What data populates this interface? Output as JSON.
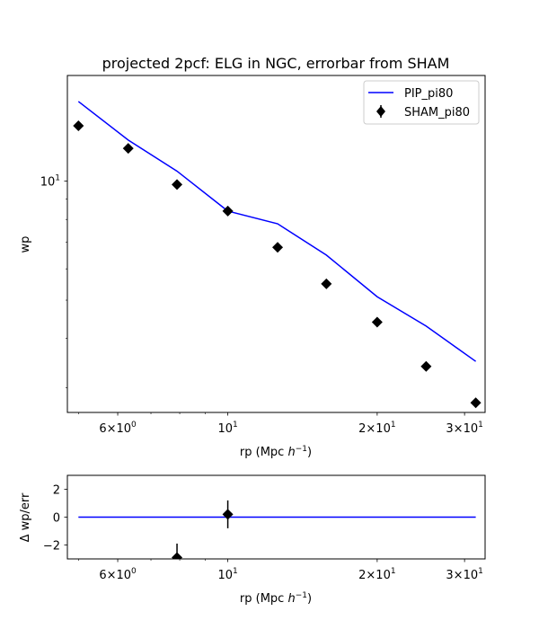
{
  "chart_data": [
    {
      "type": "line",
      "title": "projected 2pcf: ELG in NGC, errorbar from SHAM",
      "xlabel_main": "rp (Mpc ",
      "xlabel_sym": "h",
      "xlabel_exp": "−1",
      "xlabel_close": ")",
      "ylabel": "wp",
      "xscale": "log",
      "yscale": "log",
      "xlim": [
        4.75,
        33.0
      ],
      "ylim": [
        2.6,
        18.5
      ],
      "xticks": [
        {
          "value": 6,
          "mant": "6×10",
          "exp": "0"
        },
        {
          "value": 10,
          "mant": "10",
          "exp": "1"
        },
        {
          "value": 20,
          "mant": "2×10",
          "exp": "1"
        },
        {
          "value": 30,
          "mant": "3×10",
          "exp": "1"
        }
      ],
      "yticks": [
        {
          "value": 10,
          "mant": "10",
          "exp": "1"
        }
      ],
      "legend_position": "top-right",
      "series": [
        {
          "name": "PIP_pi80",
          "kind": "line",
          "color": "#0000ff",
          "x": [
            5.0,
            6.3,
            7.9,
            10.0,
            12.6,
            15.8,
            20.0,
            25.1,
            31.6
          ],
          "y": [
            15.9,
            12.7,
            10.6,
            8.4,
            7.8,
            6.5,
            5.1,
            4.3,
            3.5
          ]
        },
        {
          "name": "SHAM_pi80",
          "kind": "errorbar",
          "color": "#000000",
          "marker": "diamond",
          "x": [
            5.0,
            6.3,
            7.9,
            10.0,
            12.6,
            15.8,
            20.0,
            25.1,
            31.6
          ],
          "y": [
            13.8,
            12.1,
            9.8,
            8.4,
            6.8,
            5.5,
            4.4,
            3.4,
            2.75
          ],
          "yerr": [
            0.2,
            0.2,
            0.15,
            0.15,
            0.12,
            0.1,
            0.09,
            0.08,
            0.07
          ]
        }
      ]
    },
    {
      "type": "line",
      "xlabel_main": "rp (Mpc ",
      "xlabel_sym": "h",
      "xlabel_exp": "−1",
      "xlabel_close": ")",
      "ylabel": "Δ wp/err",
      "xscale": "log",
      "yscale": "linear",
      "xlim": [
        4.75,
        33.0
      ],
      "ylim": [
        -3,
        3
      ],
      "xticks": [
        {
          "value": 6,
          "mant": "6×10",
          "exp": "0"
        },
        {
          "value": 10,
          "mant": "10",
          "exp": "1"
        },
        {
          "value": 20,
          "mant": "2×10",
          "exp": "1"
        },
        {
          "value": 30,
          "mant": "3×10",
          "exp": "1"
        }
      ],
      "yticks": [
        {
          "value": 2,
          "label": "2"
        },
        {
          "value": 0,
          "label": "0"
        },
        {
          "value": -2,
          "label": "−2"
        }
      ],
      "series": [
        {
          "name": "PIP_pi80",
          "kind": "line",
          "color": "#0000ff",
          "x": [
            5.0,
            31.6
          ],
          "y": [
            0,
            0
          ]
        },
        {
          "name": "SHAM_pi80",
          "kind": "errorbar",
          "color": "#000000",
          "marker": "diamond",
          "x": [
            7.9,
            10.0
          ],
          "y": [
            -2.9,
            0.2
          ],
          "yerr": [
            1.0,
            1.0
          ]
        }
      ]
    }
  ]
}
